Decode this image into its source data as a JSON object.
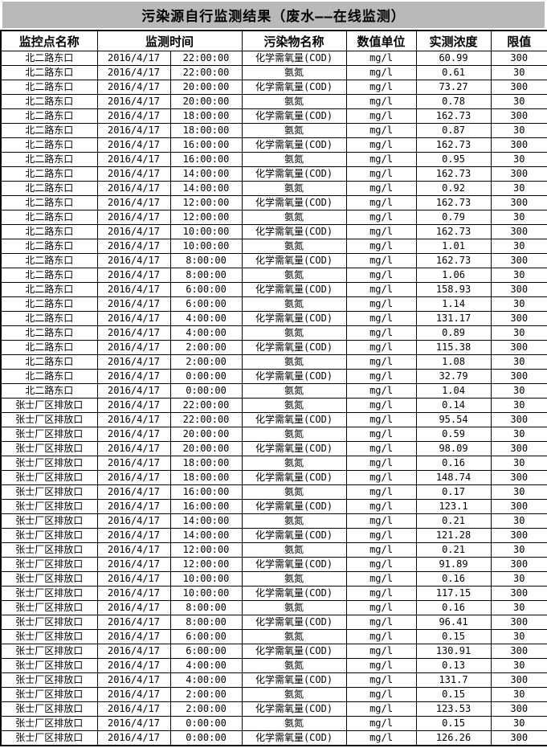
{
  "title": "污染源自行监测结果（废水——在线监测）",
  "colors": {
    "title_band_bg": "#b9b9b9",
    "table_border": "#000000",
    "text": "#000000",
    "table_bg": "#ffffff"
  },
  "table": {
    "headers": [
      "监控点名称",
      "监测时间",
      "污染物名称",
      "数值单位",
      "实测浓度",
      "限值"
    ],
    "rows": [
      [
        "北二路东口",
        "2016/4/17",
        "22:00:00",
        "化学需氧量(COD)",
        "mg/l",
        "60.99",
        "300"
      ],
      [
        "北二路东口",
        "2016/4/17",
        "22:00:00",
        "氨氮",
        "mg/l",
        "0.61",
        "30"
      ],
      [
        "北二路东口",
        "2016/4/17",
        "20:00:00",
        "化学需氧量(COD)",
        "mg/l",
        "73.27",
        "300"
      ],
      [
        "北二路东口",
        "2016/4/17",
        "20:00:00",
        "氨氮",
        "mg/l",
        "0.78",
        "30"
      ],
      [
        "北二路东口",
        "2016/4/17",
        "18:00:00",
        "化学需氧量(COD)",
        "mg/l",
        "162.73",
        "300"
      ],
      [
        "北二路东口",
        "2016/4/17",
        "18:00:00",
        "氨氮",
        "mg/l",
        "0.87",
        "30"
      ],
      [
        "北二路东口",
        "2016/4/17",
        "16:00:00",
        "化学需氧量(COD)",
        "mg/l",
        "162.73",
        "300"
      ],
      [
        "北二路东口",
        "2016/4/17",
        "16:00:00",
        "氨氮",
        "mg/l",
        "0.95",
        "30"
      ],
      [
        "北二路东口",
        "2016/4/17",
        "14:00:00",
        "化学需氧量(COD)",
        "mg/l",
        "162.73",
        "300"
      ],
      [
        "北二路东口",
        "2016/4/17",
        "14:00:00",
        "氨氮",
        "mg/l",
        "0.92",
        "30"
      ],
      [
        "北二路东口",
        "2016/4/17",
        "12:00:00",
        "化学需氧量(COD)",
        "mg/l",
        "162.73",
        "300"
      ],
      [
        "北二路东口",
        "2016/4/17",
        "12:00:00",
        "氨氮",
        "mg/l",
        "0.79",
        "30"
      ],
      [
        "北二路东口",
        "2016/4/17",
        "10:00:00",
        "化学需氧量(COD)",
        "mg/l",
        "162.73",
        "300"
      ],
      [
        "北二路东口",
        "2016/4/17",
        "10:00:00",
        "氨氮",
        "mg/l",
        "1.01",
        "30"
      ],
      [
        "北二路东口",
        "2016/4/17",
        "8:00:00",
        "化学需氧量(COD)",
        "mg/l",
        "162.73",
        "300"
      ],
      [
        "北二路东口",
        "2016/4/17",
        "8:00:00",
        "氨氮",
        "mg/l",
        "1.06",
        "30"
      ],
      [
        "北二路东口",
        "2016/4/17",
        "6:00:00",
        "化学需氧量(COD)",
        "mg/l",
        "158.93",
        "300"
      ],
      [
        "北二路东口",
        "2016/4/17",
        "6:00:00",
        "氨氮",
        "mg/l",
        "1.14",
        "30"
      ],
      [
        "北二路东口",
        "2016/4/17",
        "4:00:00",
        "化学需氧量(COD)",
        "mg/l",
        "131.17",
        "300"
      ],
      [
        "北二路东口",
        "2016/4/17",
        "4:00:00",
        "氨氮",
        "mg/l",
        "0.89",
        "30"
      ],
      [
        "北二路东口",
        "2016/4/17",
        "2:00:00",
        "化学需氧量(COD)",
        "mg/l",
        "115.38",
        "300"
      ],
      [
        "北二路东口",
        "2016/4/17",
        "2:00:00",
        "氨氮",
        "mg/l",
        "1.08",
        "30"
      ],
      [
        "北二路东口",
        "2016/4/17",
        "0:00:00",
        "化学需氧量(COD)",
        "mg/l",
        "32.79",
        "300"
      ],
      [
        "北二路东口",
        "2016/4/17",
        "0:00:00",
        "氨氮",
        "mg/l",
        "1.04",
        "30"
      ],
      [
        "张士厂区排放口",
        "2016/4/17",
        "22:00:00",
        "氨氮",
        "mg/l",
        "0.14",
        "30"
      ],
      [
        "张士厂区排放口",
        "2016/4/17",
        "22:00:00",
        "化学需氧量(COD)",
        "mg/l",
        "95.54",
        "300"
      ],
      [
        "张士厂区排放口",
        "2016/4/17",
        "20:00:00",
        "氨氮",
        "mg/l",
        "0.59",
        "30"
      ],
      [
        "张士厂区排放口",
        "2016/4/17",
        "20:00:00",
        "化学需氧量(COD)",
        "mg/l",
        "98.09",
        "300"
      ],
      [
        "张士厂区排放口",
        "2016/4/17",
        "18:00:00",
        "氨氮",
        "mg/l",
        "0.16",
        "30"
      ],
      [
        "张士厂区排放口",
        "2016/4/17",
        "18:00:00",
        "化学需氧量(COD)",
        "mg/l",
        "148.74",
        "300"
      ],
      [
        "张士厂区排放口",
        "2016/4/17",
        "16:00:00",
        "氨氮",
        "mg/l",
        "0.17",
        "30"
      ],
      [
        "张士厂区排放口",
        "2016/4/17",
        "16:00:00",
        "化学需氧量(COD)",
        "mg/l",
        "123.1",
        "300"
      ],
      [
        "张士厂区排放口",
        "2016/4/17",
        "14:00:00",
        "氨氮",
        "mg/l",
        "0.21",
        "30"
      ],
      [
        "张士厂区排放口",
        "2016/4/17",
        "14:00:00",
        "化学需氧量(COD)",
        "mg/l",
        "121.28",
        "300"
      ],
      [
        "张士厂区排放口",
        "2016/4/17",
        "12:00:00",
        "氨氮",
        "mg/l",
        "0.21",
        "30"
      ],
      [
        "张士厂区排放口",
        "2016/4/17",
        "12:00:00",
        "化学需氧量(COD)",
        "mg/l",
        "91.89",
        "300"
      ],
      [
        "张士厂区排放口",
        "2016/4/17",
        "10:00:00",
        "氨氮",
        "mg/l",
        "0.16",
        "30"
      ],
      [
        "张士厂区排放口",
        "2016/4/17",
        "10:00:00",
        "化学需氧量(COD)",
        "mg/l",
        "117.15",
        "300"
      ],
      [
        "张士厂区排放口",
        "2016/4/17",
        "8:00:00",
        "氨氮",
        "mg/l",
        "0.16",
        "30"
      ],
      [
        "张士厂区排放口",
        "2016/4/17",
        "8:00:00",
        "化学需氧量(COD)",
        "mg/l",
        "96.41",
        "300"
      ],
      [
        "张士厂区排放口",
        "2016/4/17",
        "6:00:00",
        "氨氮",
        "mg/l",
        "0.15",
        "30"
      ],
      [
        "张士厂区排放口",
        "2016/4/17",
        "6:00:00",
        "化学需氧量(COD)",
        "mg/l",
        "130.91",
        "300"
      ],
      [
        "张士厂区排放口",
        "2016/4/17",
        "4:00:00",
        "氨氮",
        "mg/l",
        "0.13",
        "30"
      ],
      [
        "张士厂区排放口",
        "2016/4/17",
        "4:00:00",
        "化学需氧量(COD)",
        "mg/l",
        "131.7",
        "300"
      ],
      [
        "张士厂区排放口",
        "2016/4/17",
        "2:00:00",
        "氨氮",
        "mg/l",
        "0.15",
        "30"
      ],
      [
        "张士厂区排放口",
        "2016/4/17",
        "2:00:00",
        "化学需氧量(COD)",
        "mg/l",
        "123.53",
        "300"
      ],
      [
        "张士厂区排放口",
        "2016/4/17",
        "0:00:00",
        "氨氮",
        "mg/l",
        "0.15",
        "30"
      ],
      [
        "张士厂区排放口",
        "2016/4/17",
        "0:00:00",
        "化学需氧量(COD)",
        "mg/l",
        "126.26",
        "300"
      ]
    ]
  }
}
